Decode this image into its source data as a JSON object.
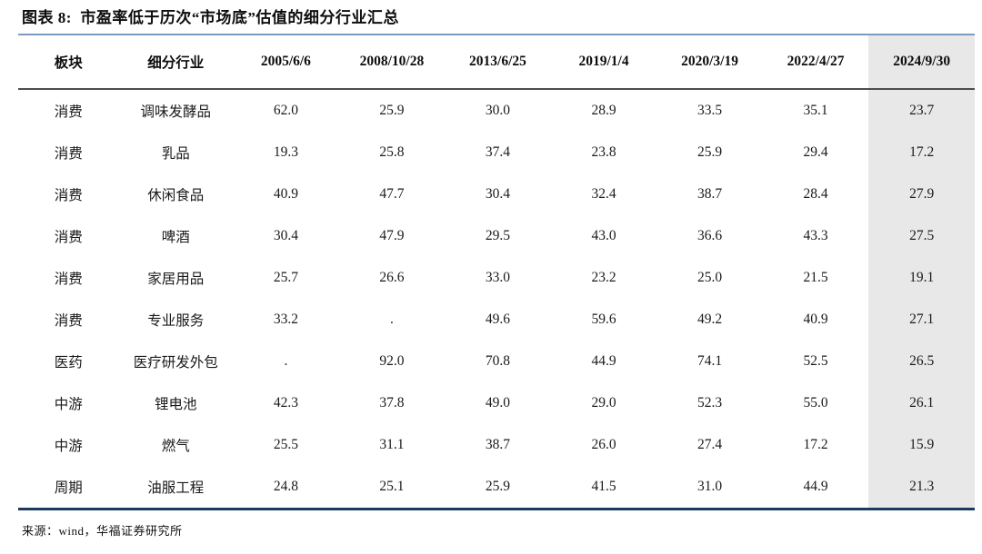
{
  "title": "图表 8:  市盈率低于历次“市场底”估值的细分行业汇总",
  "source_note": "来源：wind，华福证券研究所",
  "colors": {
    "top_rule_blue": "#7d9bc1",
    "header_rule_gray": "#4d4d4d",
    "bottom_rule_navy": "#1c3a5e",
    "highlight_column_bg": "#e8e8e8",
    "text": "#1a1a1a"
  },
  "table": {
    "headers": [
      "板块",
      "细分行业",
      "2005/6/6",
      "2008/10/28",
      "2013/6/25",
      "2019/1/4",
      "2020/3/19",
      "2022/4/27",
      "2024/9/30"
    ],
    "highlighted_column": "2024/9/30",
    "rows": [
      [
        "消费",
        "调味发酵品",
        "62.0",
        "25.9",
        "30.0",
        "28.9",
        "33.5",
        "35.1",
        "23.7"
      ],
      [
        "消费",
        "乳品",
        "19.3",
        "25.8",
        "37.4",
        "23.8",
        "25.9",
        "29.4",
        "17.2"
      ],
      [
        "消费",
        "休闲食品",
        "40.9",
        "47.7",
        "30.4",
        "32.4",
        "38.7",
        "28.4",
        "27.9"
      ],
      [
        "消费",
        "啤酒",
        "30.4",
        "47.9",
        "29.5",
        "43.0",
        "36.6",
        "43.3",
        "27.5"
      ],
      [
        "消费",
        "家居用品",
        "25.7",
        "26.6",
        "33.0",
        "23.2",
        "25.0",
        "21.5",
        "19.1"
      ],
      [
        "消费",
        "专业服务",
        "33.2",
        ".",
        "49.6",
        "59.6",
        "49.2",
        "40.9",
        "27.1"
      ],
      [
        "医药",
        "医疗研发外包",
        ".",
        "92.0",
        "70.8",
        "44.9",
        "74.1",
        "52.5",
        "26.5"
      ],
      [
        "中游",
        "锂电池",
        "42.3",
        "37.8",
        "49.0",
        "29.0",
        "52.3",
        "55.0",
        "26.1"
      ],
      [
        "中游",
        "燃气",
        "25.5",
        "31.1",
        "38.7",
        "26.0",
        "27.4",
        "17.2",
        "15.9"
      ],
      [
        "周期",
        "油服工程",
        "24.8",
        "25.1",
        "25.9",
        "41.5",
        "31.0",
        "44.9",
        "21.3"
      ]
    ]
  }
}
